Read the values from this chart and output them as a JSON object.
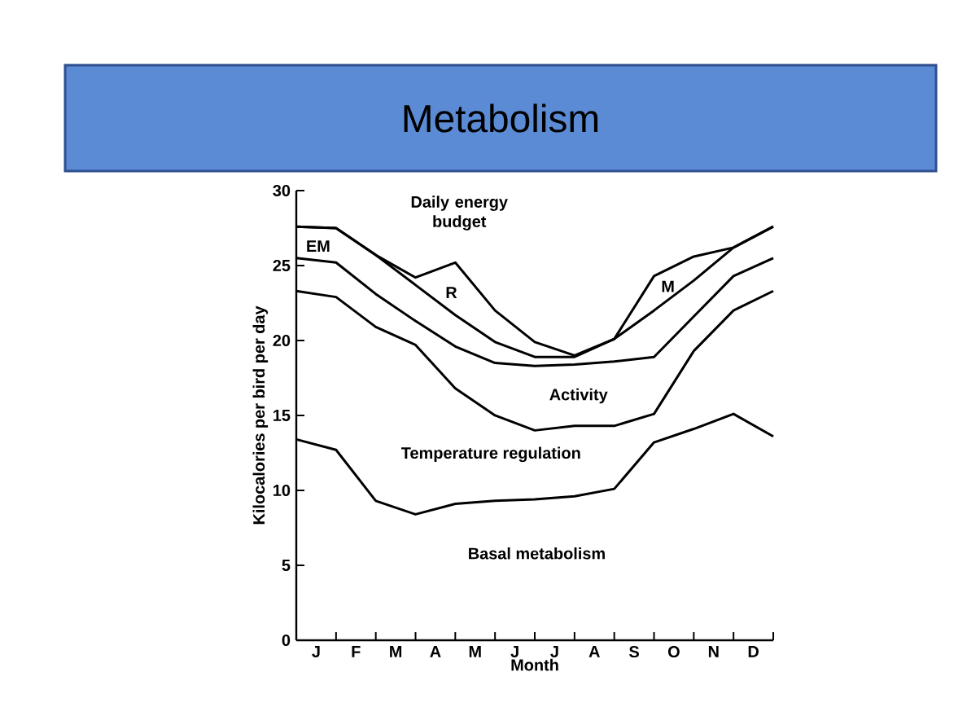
{
  "chart_data": {
    "type": "line",
    "title": "Metabolism",
    "xlabel": "Month",
    "ylabel": "Kilocalories per bird per day",
    "categories": [
      null,
      "J",
      null,
      "F",
      null,
      "M",
      null,
      "A",
      null,
      "M",
      null,
      "J",
      null,
      "J",
      null,
      "A",
      null,
      "S",
      null,
      "O",
      null,
      "N",
      null,
      "D",
      null
    ],
    "series": [
      {
        "color": "#000000",
        "values": [
          13.4,
          null,
          12.7,
          null,
          9.3,
          null,
          8.4,
          null,
          9.1,
          null,
          9.3,
          null,
          9.4,
          null,
          9.6,
          null,
          10.1,
          null,
          13.2,
          null,
          14.1,
          null,
          15.1,
          null,
          13.6
        ]
      },
      {
        "color": "#000000",
        "values": [
          23.3,
          null,
          22.9,
          null,
          20.9,
          null,
          19.7,
          null,
          16.8,
          null,
          15.0,
          null,
          14.0,
          null,
          14.3,
          null,
          14.3,
          null,
          15.1,
          null,
          19.3,
          null,
          22.0,
          null,
          23.3
        ]
      },
      {
        "color": "#000000",
        "values": [
          25.5,
          null,
          25.2,
          null,
          23.1,
          null,
          21.3,
          null,
          19.6,
          null,
          18.5,
          null,
          18.3,
          null,
          18.4,
          null,
          18.6,
          null,
          18.9,
          null,
          21.6,
          null,
          24.3,
          null,
          25.5
        ]
      },
      {
        "color": "#000000",
        "values": [
          27.6,
          null,
          27.5,
          null,
          25.7,
          null,
          23.7,
          null,
          21.7,
          null,
          19.9,
          null,
          18.9,
          null,
          18.9,
          null,
          20.1,
          null,
          22.0,
          null,
          24.0,
          null,
          26.2,
          null,
          27.6
        ]
      },
      {
        "color": "#000000",
        "values": [
          27.6,
          null,
          27.5,
          null,
          25.7,
          null,
          24.2,
          null,
          25.2,
          null,
          22.0,
          null,
          19.9,
          null,
          19.0,
          null,
          20.1,
          null,
          24.3,
          null,
          25.6,
          null,
          26.2,
          null,
          27.6
        ]
      }
    ],
    "ylim": [
      0,
      30
    ],
    "yticks": [
      0,
      5,
      10,
      15,
      20,
      25,
      30
    ],
    "annotations": [
      "Daily energy budget",
      "EM",
      "R",
      "M",
      "Activity",
      "Temperature regulation",
      "Basal metabolism"
    ],
    "grid": false,
    "marker": "none",
    "line_style": "solid"
  }
}
